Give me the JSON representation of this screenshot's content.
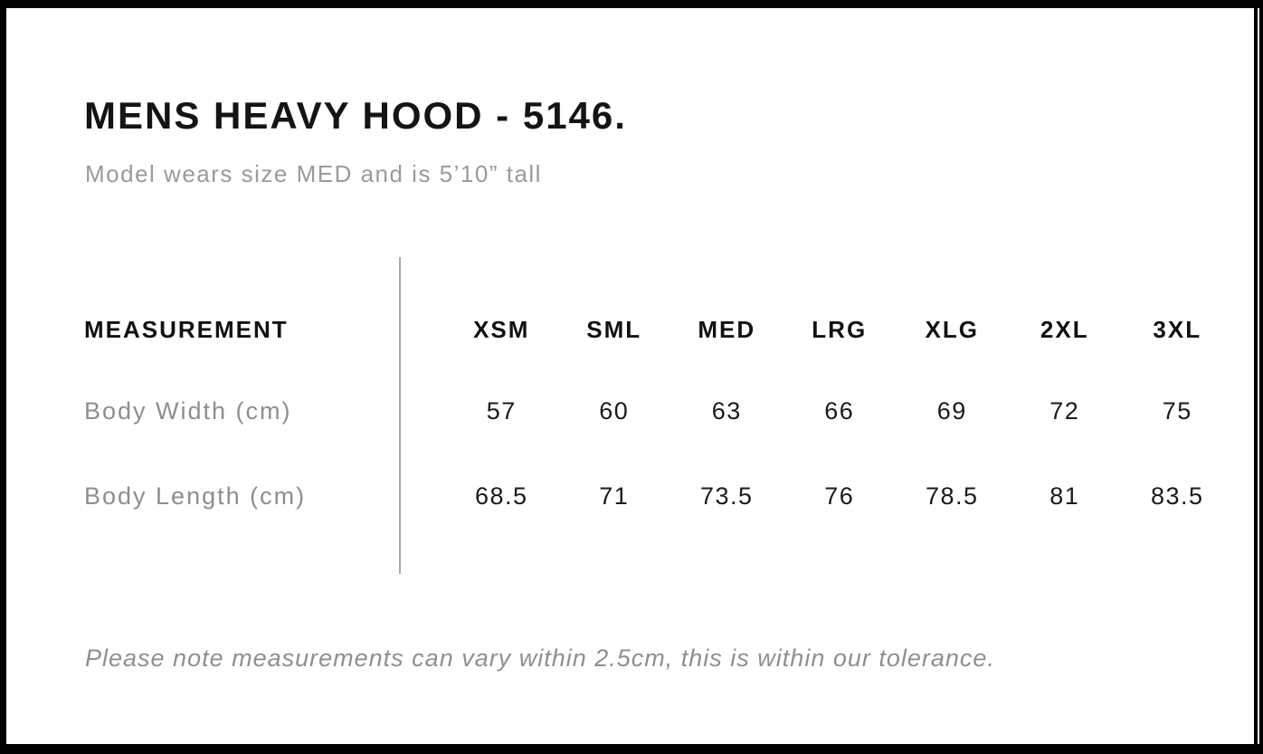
{
  "page": {
    "title": "MENS HEAVY HOOD - 5146.",
    "subtitle": "Model wears size MED and is 5’10” tall",
    "note": "Please note measurements can vary within 2.5cm, this is within our tolerance."
  },
  "size_chart": {
    "header_label": "MEASUREMENT",
    "columns": [
      "XSM",
      "SML",
      "MED",
      "LRG",
      "XLG",
      "2XL",
      "3XL"
    ],
    "rows": [
      {
        "label": "Body Width (cm)",
        "values": [
          "57",
          "60",
          "63",
          "66",
          "69",
          "72",
          "75"
        ]
      },
      {
        "label": "Body Length (cm)",
        "values": [
          "68.5",
          "71",
          "73.5",
          "76",
          "78.5",
          "81",
          "83.5"
        ]
      }
    ]
  },
  "colors": {
    "frame": "#000000",
    "background": "#ffffff",
    "text_primary": "#141414",
    "text_secondary": "#929292",
    "divider": "#a8a8a8"
  }
}
